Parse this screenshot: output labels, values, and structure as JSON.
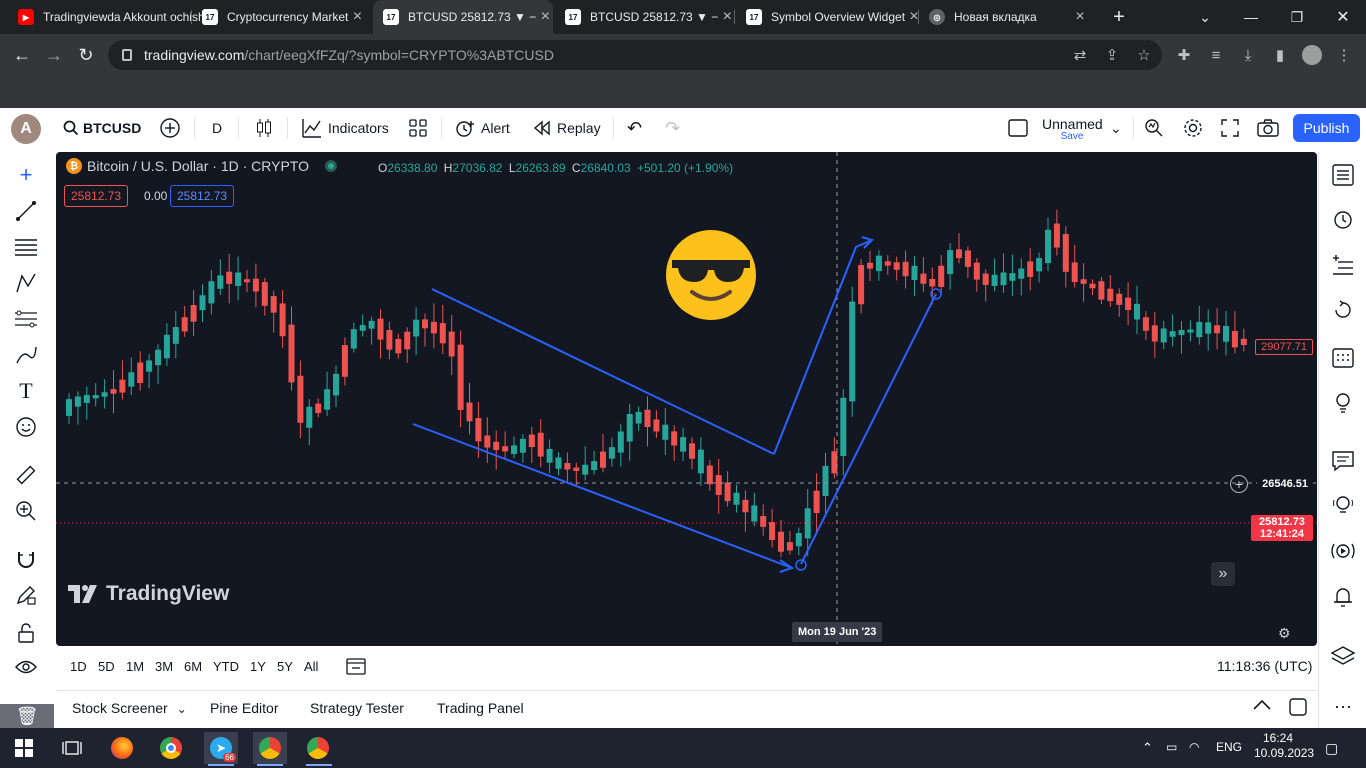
{
  "browser": {
    "tabs": [
      {
        "title": "Tradingviewda Akkount ochish",
        "favicon": "youtube-icon",
        "active": false
      },
      {
        "title": "Cryptocurrency Market",
        "favicon": "tradingview-icon",
        "active": false
      },
      {
        "title": "BTCUSD 25812.73 ▼ −",
        "favicon": "tradingview-icon",
        "active": true
      },
      {
        "title": "BTCUSD 25812.73 ▼ −",
        "favicon": "tradingview-icon",
        "active": false
      },
      {
        "title": "Symbol Overview Widget",
        "favicon": "tradingview-icon",
        "active": false
      },
      {
        "title": "Новая вкладка",
        "favicon": "chrome-icon",
        "active": false
      }
    ],
    "url_domain": "tradingview.com",
    "url_path": "/chart/eegXfFZq/?symbol=CRYPTO%3ABTCUSD"
  },
  "toolbar": {
    "avatar": "A",
    "symbol": "BTCUSD",
    "interval": "D",
    "indicators": "Indicators",
    "alert": "Alert",
    "replay": "Replay",
    "layout_name": "Unnamed",
    "layout_status": "Save",
    "publish": "Publish"
  },
  "chart": {
    "title": "Bitcoin / U.S. Dollar · 1D · CRYPTO",
    "ohlc": {
      "o_label": "O",
      "o": "26338.80",
      "h_label": "H",
      "h": "27036.82",
      "l_label": "L",
      "l": "26263.89",
      "c_label": "C",
      "c": "26840.03",
      "change": "+501.20 (+1.90%)"
    },
    "sell_price": "25812.73",
    "spread": "0.00",
    "buy_price": "25812.73",
    "price_label_last": "29077.71",
    "crosshair_price": "26546.51",
    "current_price": "25812.73",
    "countdown": "12:41:24",
    "crosshair_date": "Mon 19 Jun '23",
    "watermark": "TradingView",
    "colors": {
      "background": "#131722",
      "up": "#26a69a",
      "down": "#ef5350",
      "drawing": "#2962ff",
      "accent": "#2962ff"
    }
  },
  "timebar": {
    "ranges": [
      "1D",
      "5D",
      "1M",
      "3M",
      "6M",
      "YTD",
      "1Y",
      "5Y",
      "All"
    ],
    "clock": "11:18:36 (UTC)"
  },
  "bottom": {
    "tabs": [
      "Stock Screener",
      "Pine Editor",
      "Strategy Tester",
      "Trading Panel"
    ]
  },
  "taskbar": {
    "telegram_badge": "66",
    "lang": "ENG",
    "time": "16:24",
    "date": "10.09.2023"
  }
}
